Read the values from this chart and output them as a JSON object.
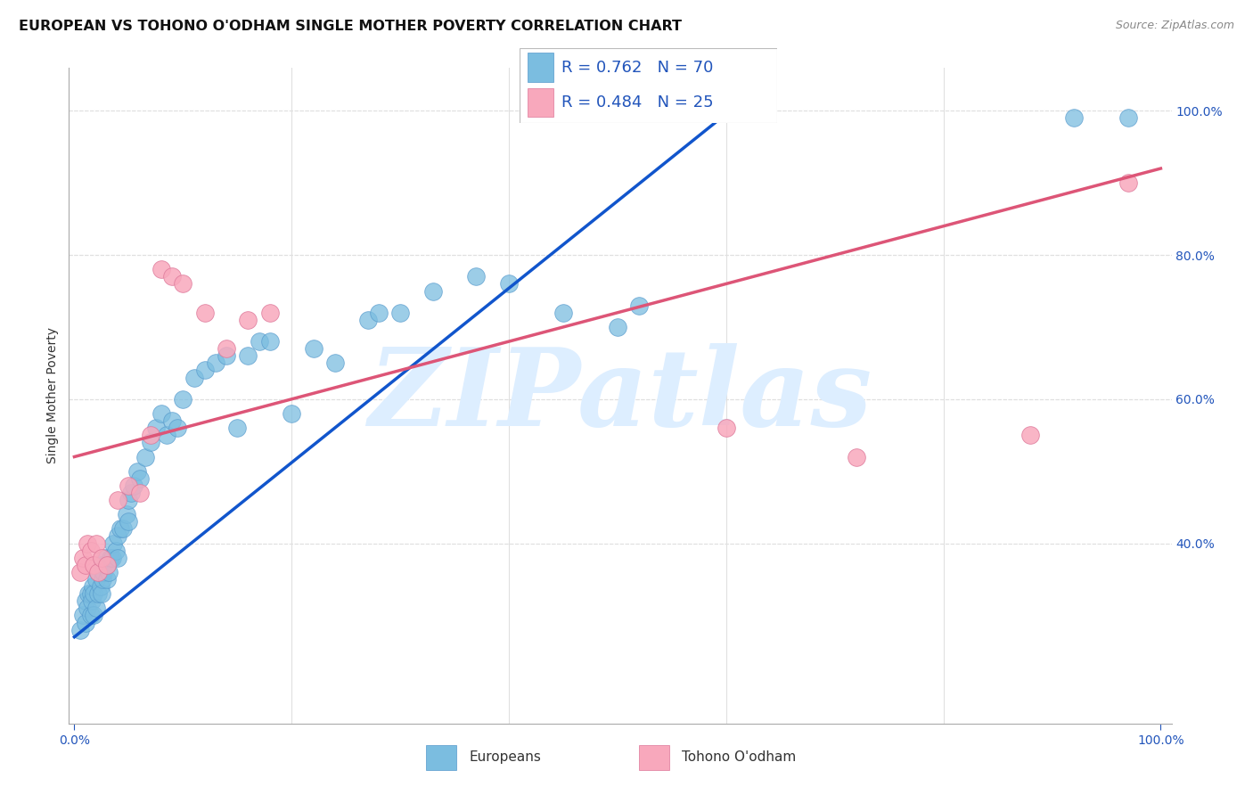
{
  "title": "EUROPEAN VS TOHONO O'ODHAM SINGLE MOTHER POVERTY CORRELATION CHART",
  "source": "Source: ZipAtlas.com",
  "ylabel": "Single Mother Poverty",
  "background_color": "#ffffff",
  "grid_color": "#e0e0e0",
  "watermark_text": "ZIPatlas",
  "watermark_color": "#ddeeff",
  "legend_blue_label": "Europeans",
  "legend_pink_label": "Tohono O'odham",
  "blue_R": "R = 0.762",
  "blue_N": "N = 70",
  "pink_R": "R = 0.484",
  "pink_N": "N = 25",
  "blue_color": "#7bbde0",
  "blue_edge_color": "#5599cc",
  "blue_line_color": "#1155cc",
  "pink_color": "#f8a8bc",
  "pink_edge_color": "#dd7799",
  "pink_line_color": "#dd5577",
  "blue_line_x0": 0.0,
  "blue_line_y0": 0.27,
  "blue_line_x1": 0.62,
  "blue_line_y1": 1.02,
  "pink_line_x0": 0.0,
  "pink_line_y0": 0.52,
  "pink_line_x1": 1.0,
  "pink_line_y1": 0.92,
  "xlim": [
    -0.005,
    1.01
  ],
  "ylim": [
    0.15,
    1.06
  ],
  "xtick_positions": [
    0.0,
    1.0
  ],
  "xtick_labels": [
    "0.0%",
    "100.0%"
  ],
  "ytick_positions": [
    0.4,
    0.6,
    0.8,
    1.0
  ],
  "ytick_labels": [
    "40.0%",
    "60.0%",
    "80.0%",
    "100.0%"
  ],
  "title_fontsize": 11.5,
  "source_fontsize": 9,
  "ylabel_fontsize": 10,
  "tick_fontsize": 10,
  "legend_color": "#2255bb",
  "blue_x": [
    0.005,
    0.008,
    0.01,
    0.01,
    0.012,
    0.013,
    0.015,
    0.015,
    0.016,
    0.017,
    0.018,
    0.018,
    0.02,
    0.02,
    0.022,
    0.022,
    0.024,
    0.025,
    0.025,
    0.026,
    0.027,
    0.028,
    0.03,
    0.03,
    0.032,
    0.033,
    0.035,
    0.036,
    0.038,
    0.04,
    0.04,
    0.042,
    0.045,
    0.048,
    0.05,
    0.05,
    0.052,
    0.055,
    0.058,
    0.06,
    0.065,
    0.07,
    0.075,
    0.08,
    0.085,
    0.09,
    0.095,
    0.1,
    0.11,
    0.12,
    0.13,
    0.14,
    0.15,
    0.16,
    0.17,
    0.18,
    0.2,
    0.22,
    0.24,
    0.27,
    0.28,
    0.3,
    0.33,
    0.37,
    0.4,
    0.45,
    0.5,
    0.52,
    0.92,
    0.97
  ],
  "blue_y": [
    0.28,
    0.3,
    0.29,
    0.32,
    0.31,
    0.33,
    0.3,
    0.33,
    0.32,
    0.34,
    0.3,
    0.33,
    0.31,
    0.35,
    0.33,
    0.36,
    0.34,
    0.33,
    0.37,
    0.35,
    0.36,
    0.38,
    0.35,
    0.37,
    0.36,
    0.38,
    0.38,
    0.4,
    0.39,
    0.38,
    0.41,
    0.42,
    0.42,
    0.44,
    0.43,
    0.46,
    0.47,
    0.48,
    0.5,
    0.49,
    0.52,
    0.54,
    0.56,
    0.58,
    0.55,
    0.57,
    0.56,
    0.6,
    0.63,
    0.64,
    0.65,
    0.66,
    0.56,
    0.66,
    0.68,
    0.68,
    0.58,
    0.67,
    0.65,
    0.71,
    0.72,
    0.72,
    0.75,
    0.77,
    0.76,
    0.72,
    0.7,
    0.73,
    0.99,
    0.99
  ],
  "pink_x": [
    0.005,
    0.008,
    0.01,
    0.012,
    0.015,
    0.018,
    0.02,
    0.022,
    0.025,
    0.03,
    0.04,
    0.05,
    0.06,
    0.07,
    0.08,
    0.09,
    0.1,
    0.12,
    0.14,
    0.16,
    0.18,
    0.6,
    0.72,
    0.88,
    0.97
  ],
  "pink_y": [
    0.36,
    0.38,
    0.37,
    0.4,
    0.39,
    0.37,
    0.4,
    0.36,
    0.38,
    0.37,
    0.46,
    0.48,
    0.47,
    0.55,
    0.78,
    0.77,
    0.76,
    0.72,
    0.67,
    0.71,
    0.72,
    0.56,
    0.52,
    0.55,
    0.9
  ]
}
